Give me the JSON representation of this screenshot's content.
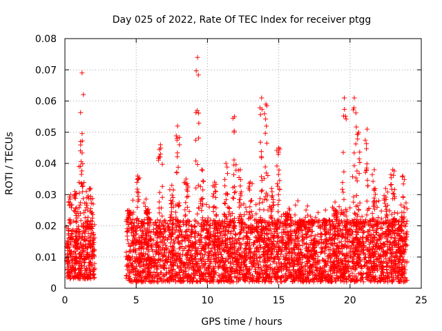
{
  "chart_data": {
    "type": "scatter",
    "title": "Day 025 of 2022, Rate Of TEC Index for receiver ptgg",
    "xlabel": "GPS time / hours",
    "ylabel": "ROTI / TECUs",
    "xlim": [
      0,
      25
    ],
    "ylim": [
      0,
      0.08
    ],
    "x_ticks": [
      "0",
      "5",
      "10",
      "15",
      "20",
      "25"
    ],
    "y_ticks": [
      "0",
      "0.01",
      "0.02",
      "0.03",
      "0.04",
      "0.05",
      "0.06",
      "0.07",
      "0.08"
    ],
    "grid": true,
    "marker": "+",
    "color": "#ff0000",
    "series_outline": [
      {
        "x_range": [
          0.1,
          2.1
        ],
        "baseline": [
          0.003,
          0.02
        ],
        "peaks": [
          [
            0.4,
            0.03
          ],
          [
            0.7,
            0.031
          ],
          [
            1.1,
            0.047
          ],
          [
            1.2,
            0.069
          ],
          [
            1.5,
            0.031
          ],
          [
            1.8,
            0.032
          ]
        ]
      },
      {
        "x_range": [
          4.3,
          24.0
        ],
        "baseline": [
          0.002,
          0.022
        ],
        "peaks": [
          [
            4.5,
            0.025
          ],
          [
            5.1,
            0.036
          ],
          [
            5.8,
            0.025
          ],
          [
            6.7,
            0.046
          ],
          [
            7.5,
            0.033
          ],
          [
            7.9,
            0.052
          ],
          [
            8.5,
            0.035
          ],
          [
            9.3,
            0.074
          ],
          [
            9.6,
            0.038
          ],
          [
            10.5,
            0.034
          ],
          [
            11.3,
            0.04
          ],
          [
            11.9,
            0.055
          ],
          [
            12.3,
            0.038
          ],
          [
            13.0,
            0.034
          ],
          [
            13.8,
            0.061
          ],
          [
            14.1,
            0.059
          ],
          [
            14.5,
            0.032
          ],
          [
            15.0,
            0.045
          ],
          [
            15.6,
            0.024
          ],
          [
            16.4,
            0.019
          ],
          [
            17.3,
            0.017
          ],
          [
            18.2,
            0.02
          ],
          [
            19.0,
            0.025
          ],
          [
            19.6,
            0.061
          ],
          [
            20.3,
            0.061
          ],
          [
            20.6,
            0.05
          ],
          [
            21.2,
            0.051
          ],
          [
            21.7,
            0.038
          ],
          [
            22.5,
            0.032
          ],
          [
            23.0,
            0.038
          ],
          [
            23.7,
            0.036
          ]
        ]
      }
    ]
  }
}
